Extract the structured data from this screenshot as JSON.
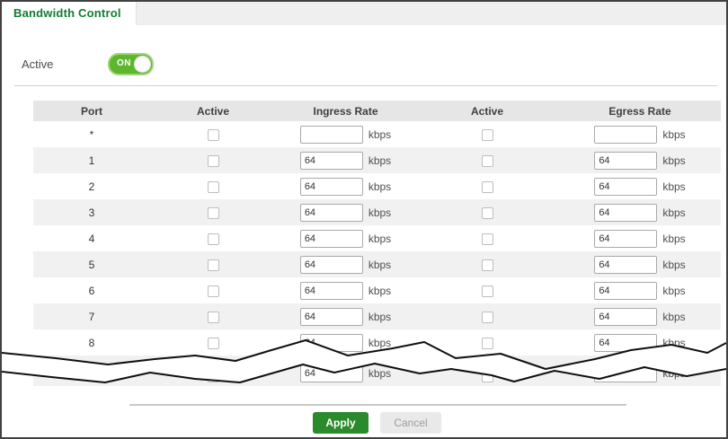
{
  "tab": {
    "title": "Bandwidth Control"
  },
  "active_section": {
    "label": "Active",
    "toggle_state": "ON"
  },
  "table": {
    "headers": [
      "Port",
      "Active",
      "Ingress Rate",
      "Active",
      "Egress Rate"
    ],
    "unit": "kbps",
    "rows": [
      {
        "port": "*",
        "ingress_active": false,
        "ingress_rate": "",
        "egress_active": false,
        "egress_rate": ""
      },
      {
        "port": "1",
        "ingress_active": false,
        "ingress_rate": "64",
        "egress_active": false,
        "egress_rate": "64"
      },
      {
        "port": "2",
        "ingress_active": false,
        "ingress_rate": "64",
        "egress_active": false,
        "egress_rate": "64"
      },
      {
        "port": "3",
        "ingress_active": false,
        "ingress_rate": "64",
        "egress_active": false,
        "egress_rate": "64"
      },
      {
        "port": "4",
        "ingress_active": false,
        "ingress_rate": "64",
        "egress_active": false,
        "egress_rate": "64"
      },
      {
        "port": "5",
        "ingress_active": false,
        "ingress_rate": "64",
        "egress_active": false,
        "egress_rate": "64"
      },
      {
        "port": "6",
        "ingress_active": false,
        "ingress_rate": "64",
        "egress_active": false,
        "egress_rate": "64"
      },
      {
        "port": "7",
        "ingress_active": false,
        "ingress_rate": "64",
        "egress_active": false,
        "egress_rate": "64"
      },
      {
        "port": "8",
        "ingress_active": false,
        "ingress_rate": "64",
        "egress_active": false,
        "egress_rate": "64"
      },
      {
        "port": "",
        "torn": true,
        "ingress_active": false,
        "ingress_rate": "64",
        "egress_active": false,
        "egress_rate": "64"
      }
    ]
  },
  "footer": {
    "apply_label": "Apply",
    "cancel_label": "Cancel"
  },
  "colors": {
    "title_green": "#107c30",
    "toggle_green": "#5cb62e",
    "apply_green": "#2b8a2b",
    "header_row_bg": "#e6e6e6",
    "alt_row_bg": "#f1f1f1"
  }
}
